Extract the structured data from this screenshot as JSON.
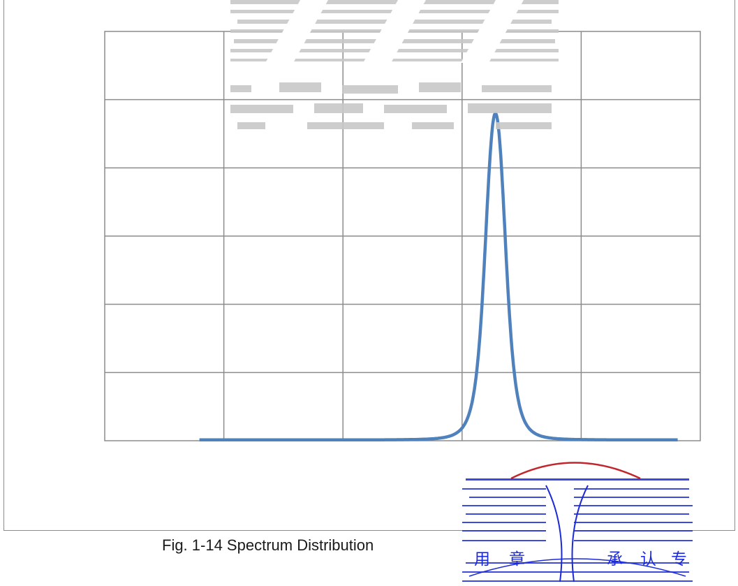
{
  "caption": "Fig. 1-14 Spectrum Distribution",
  "chart_data": {
    "type": "line",
    "title": "",
    "xlabel": "",
    "ylabel": "",
    "x_gridlines": 5,
    "y_gridlines": 6,
    "grid": true,
    "legend": "none",
    "xlim": [
      0,
      1
    ],
    "ylim": [
      0,
      1
    ],
    "series": [
      {
        "color": "#4f81bd",
        "peak_x": 0.656,
        "peak_y": 0.8,
        "half_width": 0.023,
        "baseline": 0.002,
        "x_start": 0.159,
        "x_end": 0.962
      }
    ]
  },
  "seal": {
    "text_chars": [
      "用",
      "章",
      "承",
      "认",
      "专"
    ],
    "color": "#1d2bd6",
    "accent": "#c0262b"
  }
}
